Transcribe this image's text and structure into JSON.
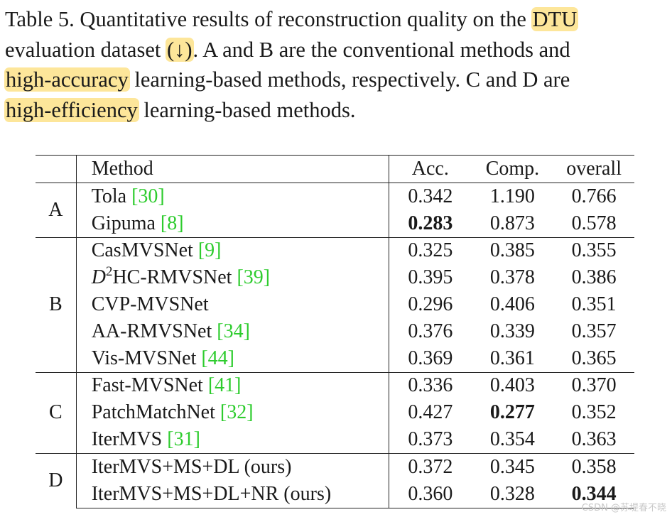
{
  "caption": {
    "l1_a": "Table 5. Quantitative results of reconstruction quality on the ",
    "l1_hl": "DTU",
    "l2_a": "evaluation dataset ",
    "l2_hl": "(↓)",
    "l2_b": ". A and B are the conventional methods and",
    "l3_hl": "high-accuracy",
    "l3_b": " learning-based methods, respectively. C and D are",
    "l4_hl": "high-efficiency",
    "l4_b": " learning-based methods."
  },
  "table": {
    "headers": {
      "method": "Method",
      "acc": "Acc.",
      "comp": "Comp.",
      "overall": "overall"
    },
    "groups": [
      {
        "label": "A",
        "rows": [
          {
            "name": "Tola ",
            "cite": "[30]",
            "acc": "0.342",
            "comp": "1.190",
            "overall": "0.766"
          },
          {
            "name": "Gipuma ",
            "cite": "[8]",
            "acc": "0.283",
            "comp": "0.873",
            "overall": "0.578"
          }
        ]
      },
      {
        "label": "B",
        "rows": [
          {
            "name_prefix": "D",
            "name_sup": "2",
            "name": "HC-RMVSNet ",
            "cite": "[39]",
            "acc": "0.395",
            "comp": "0.378",
            "overall": "0.386"
          },
          {
            "name": "CasMVSNet ",
            "cite": "[9]",
            "acc": "0.325",
            "comp": "0.385",
            "overall": "0.355"
          },
          {
            "name": "CVP-MVSNet",
            "cite": "",
            "acc": "0.296",
            "comp": "0.406",
            "overall": "0.351"
          },
          {
            "name": "AA-RMVSNet ",
            "cite": "[34]",
            "acc": "0.376",
            "comp": "0.339",
            "overall": "0.357"
          },
          {
            "name": "Vis-MVSNet ",
            "cite": "[44]",
            "acc": "0.369",
            "comp": "0.361",
            "overall": "0.365"
          }
        ]
      },
      {
        "label": "C",
        "rows": [
          {
            "name": "Fast-MVSNet ",
            "cite": "[41]",
            "acc": "0.336",
            "comp": "0.403",
            "overall": "0.370"
          },
          {
            "name": "PatchMatchNet ",
            "cite": "[32]",
            "acc": "0.427",
            "comp": "0.277",
            "overall": "0.352"
          },
          {
            "name": "IterMVS ",
            "cite": "[31]",
            "acc": "0.373",
            "comp": "0.354",
            "overall": "0.363"
          }
        ]
      },
      {
        "label": "D",
        "rows": [
          {
            "name": "IterMVS+MS+DL (ours)",
            "cite": "",
            "acc": "0.372",
            "comp": "0.345",
            "overall": "0.358"
          },
          {
            "name": "IterMVS+MS+DL+NR (ours)",
            "cite": "",
            "acc": "0.360",
            "comp": "0.328",
            "overall": "0.344"
          }
        ]
      }
    ]
  },
  "watermark": "CSDN @苏堤春不晓",
  "colors": {
    "highlight": "#fde69a",
    "citation": "#2ecc2e"
  }
}
